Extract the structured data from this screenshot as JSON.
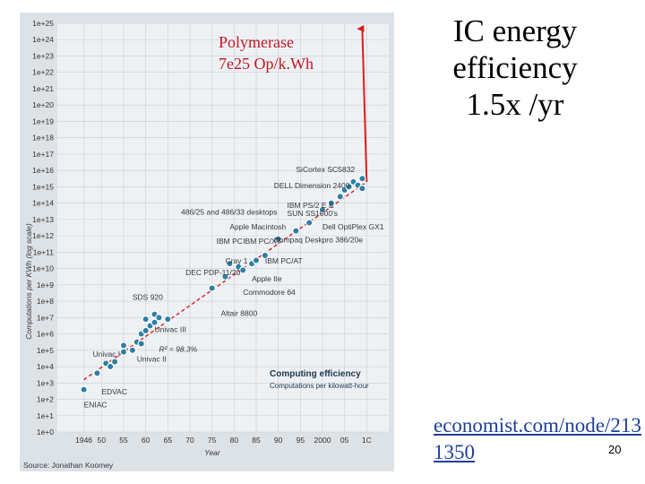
{
  "slide": {
    "title_lines": [
      "IC energy",
      "efficiency",
      "1.5x /yr"
    ],
    "link_lines": [
      "economist.com/node/213",
      "1350"
    ],
    "slide_number": "20"
  },
  "chart_data": {
    "type": "scatter",
    "title": "Computing efficiency",
    "subtitle": "Computations per kilowatt-hour",
    "xlabel": "Year",
    "ylabel": "Computations per KWh (log scale)",
    "source": "Source: Jonathan Koomey",
    "x_range": [
      1940,
      2015
    ],
    "y_range_log10": [
      0,
      25
    ],
    "x_ticks": [
      "1946",
      "50",
      "55",
      "60",
      "65",
      "70",
      "75",
      "80",
      "85",
      "90",
      "95",
      "2000",
      "05",
      "1C"
    ],
    "y_ticks": [
      "1e+0",
      "1e+1",
      "1e+2",
      "1e+3",
      "1e+4",
      "1e+5",
      "1e+6",
      "1e+7",
      "1e+8",
      "1e+9",
      "1e+10",
      "1e+11",
      "1e+12",
      "1e+13",
      "1e+14",
      "1e+15",
      "1e+16",
      "1e+17",
      "1e+18",
      "1e+19",
      "1e+20",
      "1e+21",
      "1e+22",
      "1e+23",
      "1e+24",
      "1e+25"
    ],
    "trend": {
      "label": "R² = 98.3%",
      "from": [
        1946,
        3.2
      ],
      "to": [
        2010,
        15.3
      ]
    },
    "polymerase": {
      "label_lines": [
        "Polymerase",
        "7e25 Op/k.Wh"
      ],
      "arrow_from": [
        2010,
        15.3
      ],
      "arrow_to": [
        2009,
        25
      ]
    },
    "points": [
      {
        "x": 1946,
        "y": 2.6
      },
      {
        "x": 1949,
        "y": 3.6
      },
      {
        "x": 1951,
        "y": 4.2
      },
      {
        "x": 1952,
        "y": 4.0
      },
      {
        "x": 1953,
        "y": 4.3
      },
      {
        "x": 1955,
        "y": 4.9
      },
      {
        "x": 1955,
        "y": 5.3
      },
      {
        "x": 1957,
        "y": 5.0
      },
      {
        "x": 1958,
        "y": 5.5
      },
      {
        "x": 1959,
        "y": 5.4
      },
      {
        "x": 1959,
        "y": 6.0
      },
      {
        "x": 1960,
        "y": 6.2
      },
      {
        "x": 1960,
        "y": 6.9
      },
      {
        "x": 1961,
        "y": 6.5
      },
      {
        "x": 1962,
        "y": 6.7
      },
      {
        "x": 1962,
        "y": 7.2
      },
      {
        "x": 1963,
        "y": 7.0
      },
      {
        "x": 1965,
        "y": 6.9
      },
      {
        "x": 1975,
        "y": 8.8
      },
      {
        "x": 1978,
        "y": 9.5
      },
      {
        "x": 1979,
        "y": 10.3
      },
      {
        "x": 1981,
        "y": 10.1
      },
      {
        "x": 1982,
        "y": 9.9
      },
      {
        "x": 1984,
        "y": 10.3
      },
      {
        "x": 1985,
        "y": 10.5
      },
      {
        "x": 1987,
        "y": 10.8
      },
      {
        "x": 1990,
        "y": 11.8
      },
      {
        "x": 1994,
        "y": 12.3
      },
      {
        "x": 1997,
        "y": 12.8
      },
      {
        "x": 2000,
        "y": 13.6
      },
      {
        "x": 2002,
        "y": 14.0
      },
      {
        "x": 2004,
        "y": 14.4
      },
      {
        "x": 2005,
        "y": 14.8
      },
      {
        "x": 2006,
        "y": 15.0
      },
      {
        "x": 2007,
        "y": 15.3
      },
      {
        "x": 2008,
        "y": 15.1
      },
      {
        "x": 2009,
        "y": 15.5
      },
      {
        "x": 2009,
        "y": 14.9
      }
    ],
    "annotations": [
      {
        "label": "ENIAC",
        "x": 1946,
        "y": 1.5
      },
      {
        "label": "EDVAC",
        "x": 1950,
        "y": 2.3
      },
      {
        "label": "Univac I",
        "x": 1948,
        "y": 4.6
      },
      {
        "label": "Univac II",
        "x": 1958,
        "y": 4.3
      },
      {
        "label": "Univac III",
        "x": 1962,
        "y": 6.1
      },
      {
        "label": "SDS 920",
        "x": 1957,
        "y": 8.1
      },
      {
        "label": "DEC PDP-11/20",
        "x": 1969,
        "y": 9.6
      },
      {
        "label": "Altair 8800",
        "x": 1977,
        "y": 7.1
      },
      {
        "label": "Commodore 64",
        "x": 1982,
        "y": 8.4
      },
      {
        "label": "Cray 1",
        "x": 1978,
        "y": 10.3
      },
      {
        "label": "IBM PC",
        "x": 1976,
        "y": 11.5
      },
      {
        "label": "IBM PC/XT",
        "x": 1982,
        "y": 11.5
      },
      {
        "label": "Apple IIe",
        "x": 1984,
        "y": 9.2
      },
      {
        "label": "IBM PC/AT",
        "x": 1987,
        "y": 10.3
      },
      {
        "label": "Apple Macintosh",
        "x": 1979,
        "y": 12.4
      },
      {
        "label": "Compaq Deskpro 386/20e",
        "x": 1989,
        "y": 11.6
      },
      {
        "label": "486/25 and 486/33 desktops",
        "x": 1968,
        "y": 13.3
      },
      {
        "label": "IBM PS/2 E &",
        "x": 1992,
        "y": 13.7
      },
      {
        "label": "SUN SS1000's",
        "x": 1992,
        "y": 13.2
      },
      {
        "label": "DELL Dimension 2400",
        "x": 1989,
        "y": 14.9
      },
      {
        "label": "SiCortex SC5832",
        "x": 1994,
        "y": 15.9
      },
      {
        "label": "Dell OptiPlex GX1",
        "x": 2000,
        "y": 12.4
      }
    ]
  }
}
